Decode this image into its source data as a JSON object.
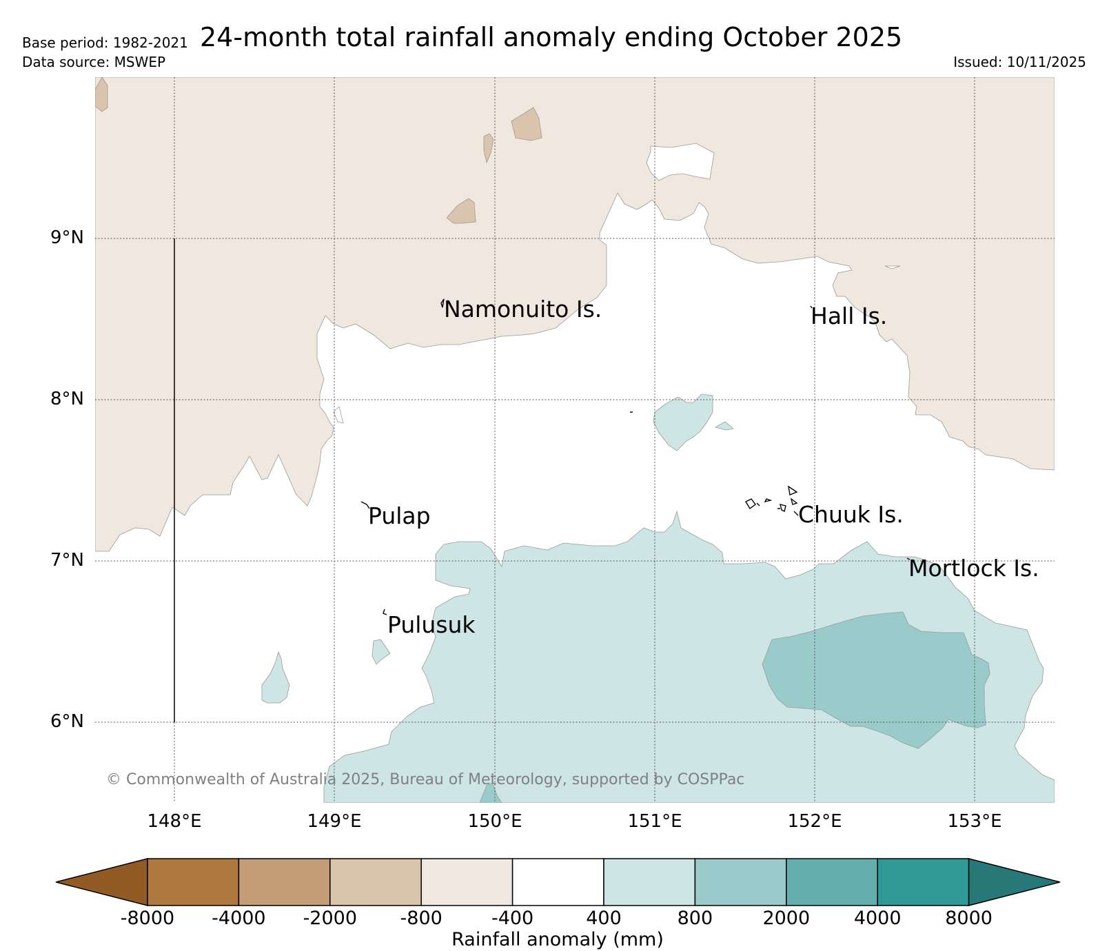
{
  "header": {
    "title": "24-month total rainfall anomaly ending October 2025",
    "base_period": "Base period: 1982-2021",
    "data_source": "Data source: MSWEP",
    "issued": "Issued: 10/11/2025"
  },
  "map": {
    "lat_labels": [
      "9°N",
      "8°N",
      "7°N",
      "6°N"
    ],
    "lon_labels": [
      "148°E",
      "149°E",
      "150°E",
      "151°E",
      "152°E",
      "153°E"
    ],
    "places": [
      {
        "name": "Namonuito Is.",
        "lon": 149.6,
        "lat": 8.6
      },
      {
        "name": "Hall Is.",
        "lon": 152.0,
        "lat": 8.55
      },
      {
        "name": "Pulap",
        "lon": 149.2,
        "lat": 7.35
      },
      {
        "name": "Chuuk Is.",
        "lon": 151.85,
        "lat": 7.35
      },
      {
        "name": "Mortlock Is.",
        "lon": 152.6,
        "lat": 7.0
      },
      {
        "name": "Pulusuk",
        "lon": 149.3,
        "lat": 6.7
      }
    ],
    "copyright": "© Commonwealth of Australia 2025, Bureau of Meteorology, supported by COSPPac"
  },
  "colorbar": {
    "label": "Rainfall anomaly (mm)",
    "ticks": [
      "-8000",
      "-4000",
      "-2000",
      "-800",
      "-400",
      "400",
      "800",
      "2000",
      "4000",
      "8000"
    ],
    "colors": [
      "#925b26",
      "#ae783f",
      "#c49d76",
      "#dbc4ad",
      "#f0e7de",
      "#ffffff",
      "#cde5e4",
      "#9acbcb",
      "#65b0af",
      "#2f9996",
      "#277877"
    ]
  },
  "palette": {
    "dry_light": "#f0e7de",
    "dry_mid": "#dbc4ad",
    "wet_light": "#cde5e4",
    "wet_mid": "#9acbcb",
    "wet_dark": "#65b0af"
  }
}
